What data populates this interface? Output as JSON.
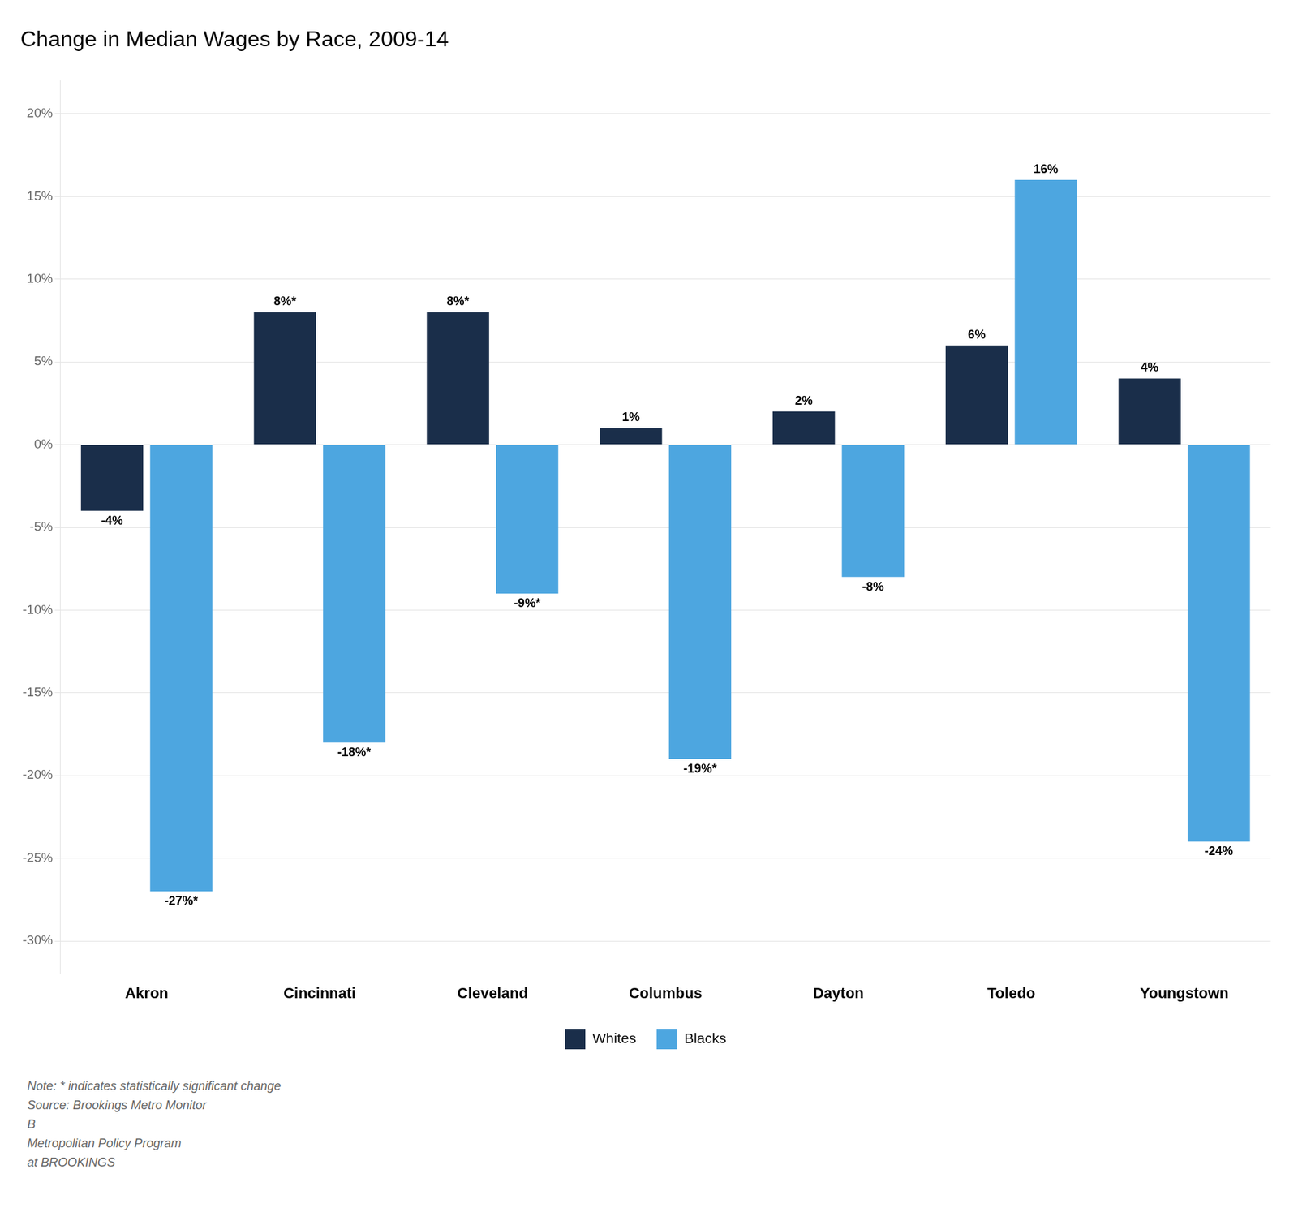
{
  "chart_data": {
    "type": "bar",
    "title": "Change in Median Wages by Race, 2009-14",
    "categories": [
      "Akron",
      "Cincinnati",
      "Cleveland",
      "Columbus",
      "Dayton",
      "Toledo",
      "Youngstown"
    ],
    "series": [
      {
        "name": "Whites",
        "color": "#1a2e4a",
        "values": [
          -4,
          8,
          8,
          1,
          2,
          6,
          4
        ],
        "value_labels": [
          "-4%",
          "8%*",
          "8%*",
          "1%",
          "2%",
          "6%",
          "4%"
        ]
      },
      {
        "name": "Blacks",
        "color": "#4da6e0",
        "values": [
          -27,
          -18,
          -9,
          -19,
          -8,
          16,
          -24
        ],
        "value_labels": [
          "-27%*",
          "-18%*",
          "-9%*",
          "-19%*",
          "-8%",
          "16%",
          "-24%"
        ]
      }
    ],
    "ylim": [
      -32,
      22
    ],
    "yticks": [
      {
        "value": 20,
        "label": "20%"
      },
      {
        "value": 15,
        "label": "15%"
      },
      {
        "value": 10,
        "label": "10%"
      },
      {
        "value": 5,
        "label": "5%"
      },
      {
        "value": 0,
        "label": "0%"
      },
      {
        "value": -5,
        "label": "-5%"
      },
      {
        "value": -10,
        "label": "-10%"
      },
      {
        "value": -15,
        "label": "-15%"
      },
      {
        "value": -20,
        "label": "-20%"
      },
      {
        "value": -25,
        "label": "-25%"
      },
      {
        "value": -30,
        "label": "-30%"
      }
    ],
    "grid": true,
    "legend": "bottom",
    "data_labels": true,
    "annotations": [
      "Note: * indicates statistically significant change",
      "Source: Brookings Metro Monitor",
      "B",
      "Metropolitan Policy Program",
      "at BROOKINGS"
    ]
  }
}
